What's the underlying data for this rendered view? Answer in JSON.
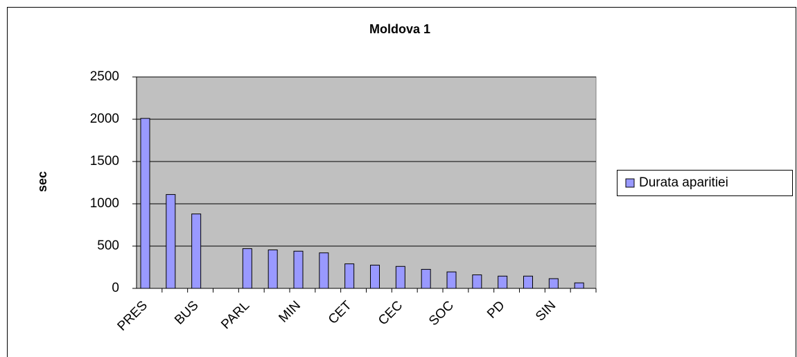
{
  "chart_data": {
    "type": "bar",
    "title": "Moldova 1",
    "y_label": "sec",
    "categories": [
      "PRES",
      null,
      "BUS",
      null,
      "PARL",
      null,
      "MIN",
      null,
      "CET",
      null,
      "CEC",
      null,
      "SOC",
      null,
      "PD",
      null,
      "SIN",
      null
    ],
    "series": [
      {
        "name": "Durata aparitiei",
        "color": "#9999ff",
        "values": [
          2010,
          1110,
          880,
          0,
          470,
          455,
          440,
          420,
          290,
          275,
          260,
          225,
          195,
          160,
          145,
          145,
          115,
          65
        ]
      }
    ],
    "ylim": [
      0,
      2500
    ],
    "yticks": [
      0,
      500,
      1000,
      1500,
      2000,
      2500
    ],
    "grid": true,
    "legend": "right"
  }
}
